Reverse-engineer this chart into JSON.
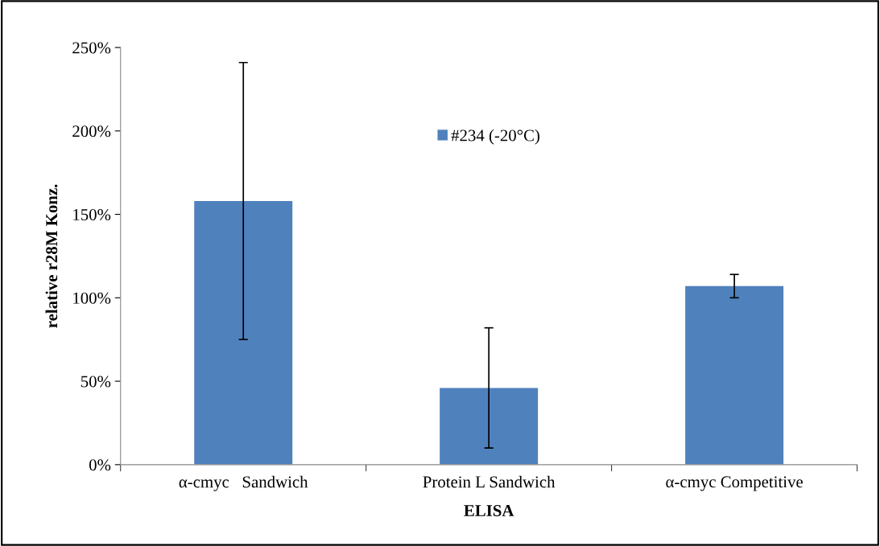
{
  "chart_data": {
    "type": "bar",
    "xlabel": "ELISA",
    "ylabel": "relative r28M Konz.",
    "categories": [
      "α-cmyc   Sandwich",
      "Protein L Sandwich",
      "α-cmyc Competitive"
    ],
    "series": [
      {
        "name": "#234 (-20°C)",
        "color": "#4f81bd",
        "values": [
          158,
          46,
          107
        ],
        "errors": [
          83,
          36,
          7
        ]
      }
    ],
    "ylim": [
      0,
      250
    ],
    "yticks": [
      {
        "value": 0,
        "label": "0%"
      },
      {
        "value": 50,
        "label": "50%"
      },
      {
        "value": 100,
        "label": "100%"
      },
      {
        "value": 150,
        "label": "150%"
      },
      {
        "value": 200,
        "label": "200%"
      },
      {
        "value": 250,
        "label": "250%"
      }
    ],
    "grid": false,
    "legend": "top"
  }
}
